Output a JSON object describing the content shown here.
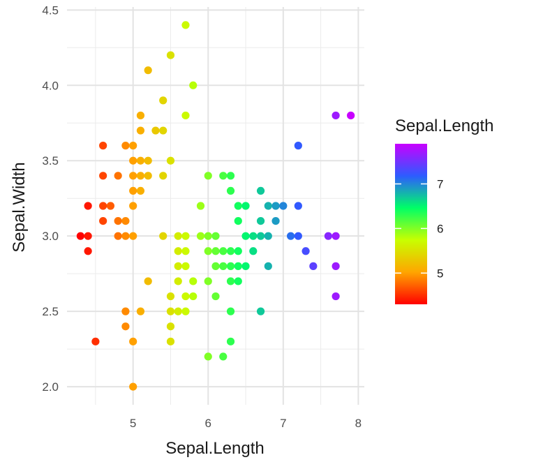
{
  "chart_data": {
    "type": "scatter",
    "title": "",
    "xlabel": "Sepal.Length",
    "ylabel": "Sepal.Width",
    "xlim": [
      4.3,
      7.9
    ],
    "ylim": [
      2.0,
      4.4
    ],
    "x_ticks": [
      5,
      6,
      7,
      8
    ],
    "x_tick_labels": [
      "5",
      "6",
      "7",
      "8"
    ],
    "y_ticks": [
      2.0,
      2.5,
      3.0,
      3.5,
      4.0,
      4.5
    ],
    "y_tick_labels": [
      "2.0",
      "2.5",
      "3.0",
      "3.5",
      "4.0",
      "4.5"
    ],
    "grid": true,
    "color_by": "Sepal.Length",
    "legend": {
      "title": "Sepal.Length",
      "type": "colorbar",
      "position": "right",
      "ticks": [
        5,
        6,
        7
      ],
      "tick_labels": [
        "5",
        "6",
        "7"
      ],
      "colors": [
        "#ff0000",
        "#ffa500",
        "#c8ff00",
        "#00ff66",
        "#2d5cff",
        "#c800ff"
      ]
    },
    "points": [
      [
        4.3,
        3.0
      ],
      [
        4.4,
        2.9
      ],
      [
        4.4,
        3.0
      ],
      [
        4.4,
        3.2
      ],
      [
        4.5,
        2.3
      ],
      [
        4.6,
        3.1
      ],
      [
        4.6,
        3.2
      ],
      [
        4.6,
        3.4
      ],
      [
        4.6,
        3.6
      ],
      [
        4.7,
        3.2
      ],
      [
        4.8,
        3.0
      ],
      [
        4.8,
        3.1
      ],
      [
        4.8,
        3.4
      ],
      [
        4.9,
        2.4
      ],
      [
        4.9,
        2.5
      ],
      [
        4.9,
        3.0
      ],
      [
        4.9,
        3.1
      ],
      [
        4.9,
        3.6
      ],
      [
        5.0,
        2.0
      ],
      [
        5.0,
        2.3
      ],
      [
        5.0,
        3.0
      ],
      [
        5.0,
        3.2
      ],
      [
        5.0,
        3.3
      ],
      [
        5.0,
        3.4
      ],
      [
        5.0,
        3.5
      ],
      [
        5.0,
        3.6
      ],
      [
        5.1,
        2.5
      ],
      [
        5.1,
        3.3
      ],
      [
        5.1,
        3.4
      ],
      [
        5.1,
        3.5
      ],
      [
        5.1,
        3.7
      ],
      [
        5.1,
        3.8
      ],
      [
        5.2,
        2.7
      ],
      [
        5.2,
        3.4
      ],
      [
        5.2,
        3.5
      ],
      [
        5.2,
        4.1
      ],
      [
        5.3,
        3.7
      ],
      [
        5.4,
        3.0
      ],
      [
        5.4,
        3.4
      ],
      [
        5.4,
        3.7
      ],
      [
        5.4,
        3.9
      ],
      [
        5.5,
        2.3
      ],
      [
        5.5,
        2.4
      ],
      [
        5.5,
        2.5
      ],
      [
        5.5,
        2.6
      ],
      [
        5.5,
        3.5
      ],
      [
        5.5,
        4.2
      ],
      [
        5.6,
        2.5
      ],
      [
        5.6,
        2.7
      ],
      [
        5.6,
        2.8
      ],
      [
        5.6,
        2.9
      ],
      [
        5.6,
        3.0
      ],
      [
        5.7,
        2.5
      ],
      [
        5.7,
        2.6
      ],
      [
        5.7,
        2.8
      ],
      [
        5.7,
        2.9
      ],
      [
        5.7,
        3.0
      ],
      [
        5.7,
        3.8
      ],
      [
        5.7,
        4.4
      ],
      [
        5.8,
        2.6
      ],
      [
        5.8,
        2.7
      ],
      [
        5.8,
        4.0
      ],
      [
        5.9,
        3.0
      ],
      [
        5.9,
        3.2
      ],
      [
        6.0,
        2.2
      ],
      [
        6.0,
        2.7
      ],
      [
        6.0,
        2.9
      ],
      [
        6.0,
        3.0
      ],
      [
        6.0,
        3.4
      ],
      [
        6.1,
        2.6
      ],
      [
        6.1,
        2.8
      ],
      [
        6.1,
        2.9
      ],
      [
        6.1,
        3.0
      ],
      [
        6.2,
        2.2
      ],
      [
        6.2,
        2.8
      ],
      [
        6.2,
        2.9
      ],
      [
        6.2,
        3.4
      ],
      [
        6.3,
        2.3
      ],
      [
        6.3,
        2.5
      ],
      [
        6.3,
        2.7
      ],
      [
        6.3,
        2.8
      ],
      [
        6.3,
        2.9
      ],
      [
        6.3,
        3.3
      ],
      [
        6.3,
        3.4
      ],
      [
        6.4,
        2.7
      ],
      [
        6.4,
        2.8
      ],
      [
        6.4,
        2.9
      ],
      [
        6.4,
        3.1
      ],
      [
        6.4,
        3.2
      ],
      [
        6.5,
        2.8
      ],
      [
        6.5,
        3.0
      ],
      [
        6.5,
        3.2
      ],
      [
        6.6,
        2.9
      ],
      [
        6.6,
        3.0
      ],
      [
        6.7,
        2.5
      ],
      [
        6.7,
        3.0
      ],
      [
        6.7,
        3.1
      ],
      [
        6.7,
        3.3
      ],
      [
        6.8,
        2.8
      ],
      [
        6.8,
        3.0
      ],
      [
        6.8,
        3.2
      ],
      [
        6.9,
        3.1
      ],
      [
        6.9,
        3.2
      ],
      [
        7.0,
        3.2
      ],
      [
        7.1,
        3.0
      ],
      [
        7.2,
        3.0
      ],
      [
        7.2,
        3.2
      ],
      [
        7.2,
        3.6
      ],
      [
        7.3,
        2.9
      ],
      [
        7.4,
        2.8
      ],
      [
        7.6,
        3.0
      ],
      [
        7.7,
        2.6
      ],
      [
        7.7,
        2.8
      ],
      [
        7.7,
        3.0
      ],
      [
        7.7,
        3.8
      ],
      [
        7.9,
        3.8
      ]
    ]
  }
}
